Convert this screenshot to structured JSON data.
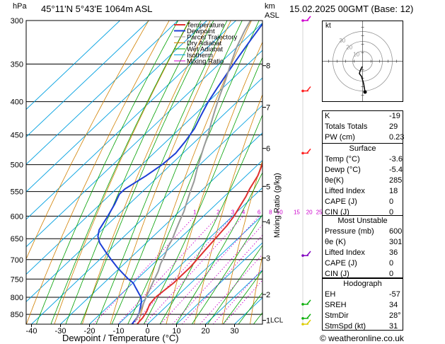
{
  "header": {
    "pressure_unit": "hPa",
    "location": "45°11'N  5°43'E  1064m  ASL",
    "height_unit": "km",
    "height_unit2": "ASL",
    "datetime": "15.02.2025  00GMT  (Base: 12)"
  },
  "legend": {
    "items": [
      {
        "label": "Temperature",
        "color": "#e03030"
      },
      {
        "label": "Dewpoint",
        "color": "#1d3fd6"
      },
      {
        "label": "Parcel Trajectory",
        "color": "#999999"
      },
      {
        "label": "Dry Adiabat",
        "color": "#d08000"
      },
      {
        "label": "Wet Adiabat",
        "color": "#00a000"
      },
      {
        "label": "Isotherm",
        "color": "#00a0e0"
      },
      {
        "label": "Mixing Ratio",
        "color": "#cc00cc"
      }
    ]
  },
  "chart_data": {
    "type": "line",
    "title": "",
    "xlabel": "Dewpoint / Temperature (°C)",
    "ylabel": "hPa",
    "y2label": "Mixing Ratio (g/kg)",
    "x_ticks": [
      -40,
      -30,
      -20,
      -10,
      0,
      10,
      20,
      30
    ],
    "pressure_levels": [
      300,
      350,
      400,
      450,
      500,
      550,
      600,
      650,
      700,
      750,
      800,
      850
    ],
    "ylim": [
      300,
      880
    ],
    "km_ticks": [
      {
        "km": "8",
        "p": 352
      },
      {
        "km": "7",
        "p": 408
      },
      {
        "km": "6",
        "p": 472
      },
      {
        "km": "5",
        "p": 540
      },
      {
        "km": "4",
        "p": 612
      },
      {
        "km": "3",
        "p": 696
      },
      {
        "km": "2",
        "p": 792
      },
      {
        "km": "1",
        "p": 868
      }
    ],
    "lcl_label": "LCL",
    "lcl_p": 868,
    "mixing_ratio_labels": [
      "1",
      "2",
      "3",
      "4",
      "6",
      "8",
      "10",
      "15",
      "20",
      "25"
    ],
    "series": [
      {
        "name": "Temperature",
        "color": "#e03030",
        "points": [
          [
            -3.6,
            880
          ],
          [
            -4,
            860
          ],
          [
            -5,
            840
          ],
          [
            -6.5,
            820
          ],
          [
            -7,
            800
          ],
          [
            -6.5,
            780
          ],
          [
            -6,
            760
          ],
          [
            -6,
            740
          ],
          [
            -6,
            720
          ],
          [
            -6.5,
            700
          ],
          [
            -7,
            680
          ],
          [
            -7.5,
            660
          ],
          [
            -8,
            640
          ],
          [
            -8.5,
            620
          ],
          [
            -9.5,
            600
          ],
          [
            -11,
            580
          ],
          [
            -12.5,
            560
          ],
          [
            -14,
            545
          ],
          [
            -16,
            520
          ],
          [
            -18.5,
            500
          ],
          [
            -21,
            480
          ],
          [
            -23,
            460
          ],
          [
            -25.5,
            440
          ],
          [
            -28,
            420
          ],
          [
            -30.5,
            400
          ],
          [
            -33.5,
            380
          ],
          [
            -36.5,
            360
          ],
          [
            -39,
            345
          ],
          [
            -42,
            330
          ],
          [
            -44.5,
            315
          ],
          [
            -47,
            300
          ]
        ]
      },
      {
        "name": "Dewpoint",
        "color": "#1d3fd6",
        "points": [
          [
            -5.4,
            880
          ],
          [
            -6,
            860
          ],
          [
            -7,
            845
          ],
          [
            -8.5,
            830
          ],
          [
            -10,
            815
          ],
          [
            -12,
            800
          ],
          [
            -14,
            790
          ],
          [
            -16,
            780
          ],
          [
            -18,
            770
          ],
          [
            -20,
            760
          ],
          [
            -23,
            750
          ],
          [
            -27,
            735
          ],
          [
            -31,
            720
          ],
          [
            -36,
            700
          ],
          [
            -41,
            680
          ],
          [
            -46,
            660
          ],
          [
            -49,
            645
          ],
          [
            -51,
            630
          ],
          [
            -53,
            600
          ],
          [
            -55,
            575
          ],
          [
            -57,
            555
          ],
          [
            -57,
            545
          ],
          [
            -54.5,
            520
          ],
          [
            -53,
            500
          ],
          [
            -52.5,
            480
          ],
          [
            -53.5,
            460
          ],
          [
            -55,
            440
          ],
          [
            -57.5,
            420
          ],
          [
            -60,
            400
          ],
          [
            -62,
            380
          ],
          [
            -64,
            360
          ],
          [
            -66,
            340
          ],
          [
            -68,
            320
          ],
          [
            -70,
            300
          ]
        ]
      },
      {
        "name": "Parcel Trajectory",
        "color": "#999999",
        "points": [
          [
            -5.4,
            870
          ],
          [
            -6.5,
            850
          ],
          [
            -8,
            830
          ],
          [
            -9.5,
            810
          ],
          [
            -11,
            790
          ],
          [
            -12.5,
            770
          ],
          [
            -14,
            750
          ],
          [
            -15.5,
            730
          ],
          [
            -17.5,
            710
          ],
          [
            -19,
            690
          ],
          [
            -21,
            670
          ],
          [
            -22.5,
            650
          ],
          [
            -24.5,
            630
          ],
          [
            -26.5,
            610
          ],
          [
            -28.5,
            590
          ],
          [
            -31,
            570
          ],
          [
            -33.5,
            550
          ],
          [
            -36,
            530
          ],
          [
            -39,
            510
          ],
          [
            -42,
            490
          ],
          [
            -45,
            470
          ],
          [
            -48,
            450
          ],
          [
            -51.5,
            430
          ],
          [
            -55,
            410
          ],
          [
            -58.5,
            390
          ],
          [
            -62,
            370
          ],
          [
            -66,
            350
          ],
          [
            -70,
            330
          ],
          [
            -73.5,
            310
          ],
          [
            -75,
            300
          ]
        ]
      }
    ],
    "wind_barbs": [
      {
        "p": 300,
        "color": "#d000d0"
      },
      {
        "p": 385,
        "color": "#ff2020"
      },
      {
        "p": 480,
        "color": "#ff2020"
      },
      {
        "p": 690,
        "color": "#8000c0"
      },
      {
        "p": 820,
        "color": "#10b010"
      },
      {
        "p": 862,
        "color": "#10b010"
      },
      {
        "p": 880,
        "color": "#ddcc00"
      }
    ]
  },
  "hodograph": {
    "label": "kt",
    "ring_labels": [
      "10",
      "20",
      "30"
    ]
  },
  "indices": [
    {
      "key": "K",
      "value": "-19"
    },
    {
      "key": "Totals Totals",
      "value": "29"
    },
    {
      "key": "PW (cm)",
      "value": "0.23"
    }
  ],
  "surface": {
    "title": "Surface",
    "rows": [
      {
        "key": "Temp (°C)",
        "value": "-3.6"
      },
      {
        "key": "Dewp (°C)",
        "value": "-5.4"
      },
      {
        "key": "θe(K)",
        "value": "285"
      },
      {
        "key": "Lifted Index",
        "value": "18"
      },
      {
        "key": "CAPE (J)",
        "value": "0"
      },
      {
        "key": "CIN (J)",
        "value": "0"
      }
    ]
  },
  "unstable": {
    "title": "Most Unstable",
    "rows": [
      {
        "key": "Pressure (mb)",
        "value": "600"
      },
      {
        "key": "θe (K)",
        "value": "301"
      },
      {
        "key": "Lifted Index",
        "value": "36"
      },
      {
        "key": "CAPE (J)",
        "value": "0"
      },
      {
        "key": "CIN (J)",
        "value": "0"
      }
    ]
  },
  "hodo_table": {
    "title": "Hodograph",
    "rows": [
      {
        "key": "EH",
        "value": "-57"
      },
      {
        "key": "SREH",
        "value": "34"
      },
      {
        "key": "StmDir",
        "value": "28°"
      },
      {
        "key": "StmSpd (kt)",
        "value": "31"
      }
    ]
  },
  "footer": {
    "copyright": "© weatheronline.co.uk"
  }
}
